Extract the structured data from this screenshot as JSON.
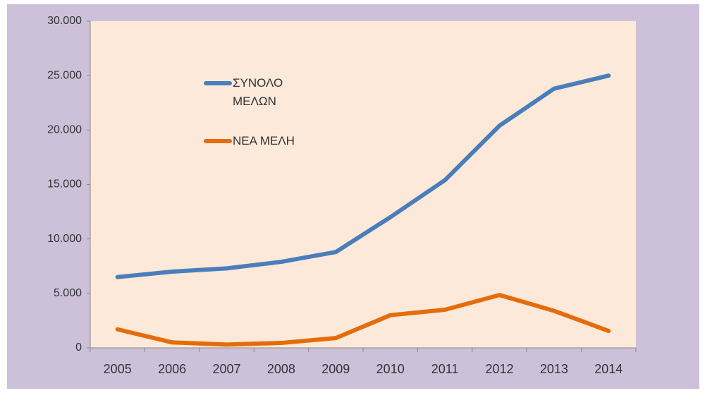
{
  "chart_data": {
    "type": "line",
    "categories": [
      "2005",
      "2006",
      "2007",
      "2008",
      "2009",
      "2010",
      "2011",
      "2012",
      "2013",
      "2014"
    ],
    "series": [
      {
        "name": "ΣΥΝΟΛΟ ΜΕΛΩΝ",
        "color": "#4a7ebb",
        "values": [
          6500,
          7000,
          7300,
          7900,
          8800,
          12000,
          15400,
          20400,
          23800,
          25000
        ]
      },
      {
        "name": "ΝΕΑ ΜΕΛΗ",
        "color": "#e46c0a",
        "values": [
          1700,
          500,
          300,
          450,
          900,
          3000,
          3500,
          4850,
          3400,
          1550
        ]
      }
    ],
    "ylim": [
      0,
      30000
    ],
    "yticks": [
      0,
      {
        "value": 5000,
        "label": "5.000"
      },
      {
        "value": 10000,
        "label": "10.000"
      },
      {
        "value": 15000,
        "label": "15.000"
      },
      {
        "value": 20000,
        "label": "20.000"
      },
      {
        "value": 25000,
        "label": "25.000"
      },
      {
        "value": 30000,
        "label": "30.000"
      }
    ],
    "grid": false,
    "legend": "inside-top-left"
  }
}
